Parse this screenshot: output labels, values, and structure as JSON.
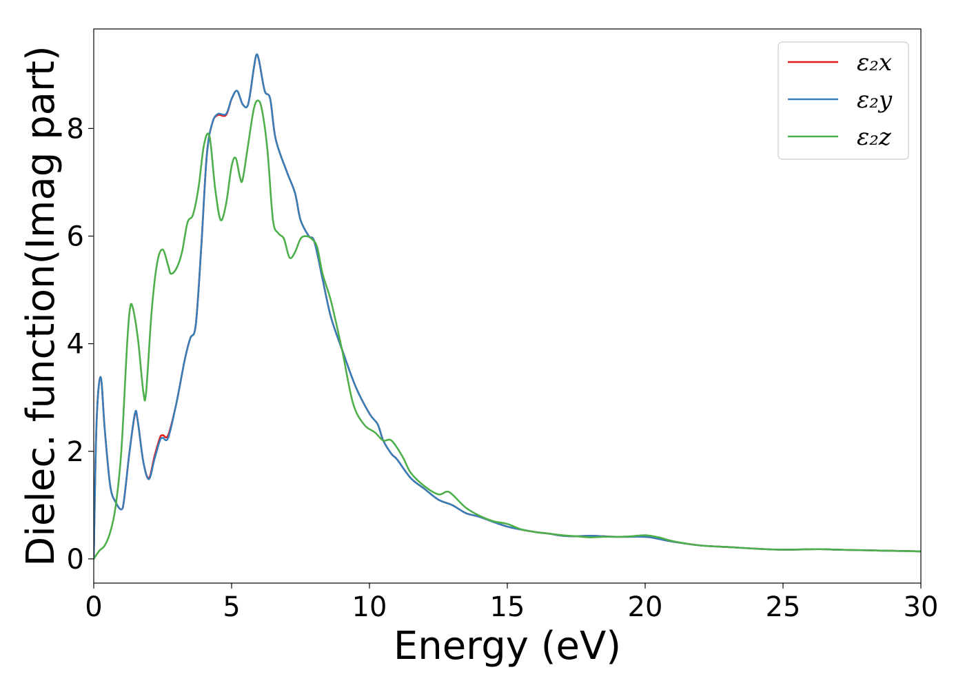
{
  "chart_data": {
    "type": "line",
    "title": "",
    "xlabel": "Energy (eV)",
    "ylabel": "Dielec. function(Imag part)",
    "xlim": [
      0,
      30
    ],
    "ylim": [
      -0.45,
      9.85
    ],
    "xticks": [
      0,
      5,
      10,
      15,
      20,
      25,
      30
    ],
    "yticks": [
      0,
      2,
      4,
      6,
      8
    ],
    "grid": false,
    "legend_position": "top-right",
    "series": [
      {
        "name": "ε₂x",
        "color": "#e41a1c",
        "x": [
          0,
          0.1,
          0.25,
          0.4,
          0.6,
          0.8,
          1.0,
          1.1,
          1.3,
          1.5,
          1.6,
          1.8,
          2.0,
          2.2,
          2.4,
          2.5,
          2.7,
          3.0,
          3.3,
          3.5,
          3.7,
          3.9,
          4.1,
          4.3,
          4.5,
          4.8,
          5.0,
          5.2,
          5.4,
          5.6,
          5.8,
          5.9,
          6.0,
          6.2,
          6.4,
          6.6,
          7.0,
          7.3,
          7.5,
          7.8,
          8.0,
          8.3,
          8.6,
          9.0,
          9.5,
          10.0,
          10.3,
          10.5,
          10.8,
          11.0,
          11.5,
          12.0,
          12.5,
          13.0,
          13.5,
          14.0,
          15.0,
          16.0,
          16.5,
          17.0,
          17.5,
          18.0,
          18.5,
          19.0,
          20.0,
          20.5,
          21.0,
          22.0,
          23.0,
          24.0,
          25.0,
          26.0,
          26.5,
          27.0,
          28.0,
          29.0,
          30.0
        ],
        "y": [
          0.0,
          2.5,
          3.38,
          2.4,
          1.35,
          1.05,
          0.92,
          1.1,
          2.0,
          2.7,
          2.55,
          1.8,
          1.5,
          1.9,
          2.25,
          2.3,
          2.3,
          2.9,
          3.7,
          4.1,
          4.35,
          5.8,
          7.5,
          8.1,
          8.25,
          8.25,
          8.55,
          8.7,
          8.45,
          8.45,
          9.1,
          9.37,
          9.25,
          8.7,
          8.55,
          7.8,
          7.2,
          6.8,
          6.3,
          6.0,
          5.9,
          5.2,
          4.5,
          3.9,
          3.2,
          2.7,
          2.5,
          2.2,
          1.95,
          1.85,
          1.5,
          1.3,
          1.1,
          1.0,
          0.85,
          0.78,
          0.6,
          0.5,
          0.47,
          0.43,
          0.42,
          0.43,
          0.42,
          0.41,
          0.41,
          0.37,
          0.32,
          0.25,
          0.22,
          0.19,
          0.17,
          0.18,
          0.18,
          0.17,
          0.16,
          0.15,
          0.14
        ]
      },
      {
        "name": "ε₂y",
        "color": "#377eb8",
        "x": [
          0,
          0.1,
          0.25,
          0.4,
          0.6,
          0.8,
          1.0,
          1.1,
          1.3,
          1.5,
          1.6,
          1.8,
          2.0,
          2.2,
          2.4,
          2.5,
          2.7,
          3.0,
          3.3,
          3.5,
          3.7,
          3.9,
          4.1,
          4.3,
          4.5,
          4.8,
          5.0,
          5.2,
          5.4,
          5.6,
          5.8,
          5.9,
          6.0,
          6.2,
          6.4,
          6.6,
          7.0,
          7.3,
          7.5,
          7.8,
          8.0,
          8.3,
          8.6,
          9.0,
          9.5,
          10.0,
          10.3,
          10.5,
          10.8,
          11.0,
          11.5,
          12.0,
          12.5,
          13.0,
          13.5,
          14.0,
          15.0,
          16.0,
          16.5,
          17.0,
          17.5,
          18.0,
          18.5,
          19.0,
          20.0,
          20.5,
          21.0,
          22.0,
          23.0,
          24.0,
          25.0,
          26.0,
          26.5,
          27.0,
          28.0,
          29.0,
          30.0
        ],
        "y": [
          0.0,
          2.5,
          3.38,
          2.4,
          1.35,
          1.05,
          0.92,
          1.1,
          2.0,
          2.72,
          2.55,
          1.8,
          1.48,
          1.85,
          2.2,
          2.25,
          2.25,
          2.9,
          3.7,
          4.1,
          4.35,
          5.8,
          7.5,
          8.1,
          8.27,
          8.27,
          8.55,
          8.7,
          8.45,
          8.45,
          9.1,
          9.37,
          9.25,
          8.7,
          8.55,
          7.8,
          7.2,
          6.8,
          6.3,
          6.0,
          5.9,
          5.2,
          4.5,
          3.9,
          3.2,
          2.7,
          2.5,
          2.2,
          1.95,
          1.85,
          1.5,
          1.3,
          1.1,
          1.0,
          0.85,
          0.78,
          0.6,
          0.5,
          0.47,
          0.43,
          0.42,
          0.43,
          0.42,
          0.41,
          0.41,
          0.37,
          0.32,
          0.25,
          0.22,
          0.19,
          0.17,
          0.18,
          0.18,
          0.17,
          0.16,
          0.15,
          0.14
        ]
      },
      {
        "name": "ε₂z",
        "color": "#4daf4a",
        "x": [
          0,
          0.2,
          0.4,
          0.6,
          0.8,
          1.0,
          1.2,
          1.3,
          1.4,
          1.6,
          1.8,
          1.9,
          2.1,
          2.3,
          2.5,
          2.7,
          2.8,
          3.0,
          3.2,
          3.4,
          3.6,
          3.8,
          4.0,
          4.2,
          4.4,
          4.6,
          4.8,
          5.0,
          5.15,
          5.3,
          5.4,
          5.6,
          5.8,
          5.95,
          6.1,
          6.3,
          6.5,
          6.7,
          6.9,
          7.1,
          7.3,
          7.5,
          7.7,
          7.9,
          8.1,
          8.3,
          8.6,
          9.0,
          9.4,
          9.8,
          10.2,
          10.5,
          10.8,
          11.2,
          11.5,
          12.0,
          12.5,
          12.8,
          13.0,
          13.5,
          14.0,
          14.5,
          15.0,
          15.5,
          16.0,
          16.5,
          17.0,
          17.5,
          18.0,
          18.5,
          19.0,
          19.5,
          20.0,
          20.5,
          21.0,
          22.0,
          23.0,
          24.0,
          25.0,
          26.0,
          26.5,
          27.0,
          28.0,
          29.0,
          30.0
        ],
        "y": [
          0.0,
          0.15,
          0.25,
          0.5,
          1.0,
          2.0,
          3.9,
          4.6,
          4.7,
          4.1,
          3.1,
          3.1,
          4.6,
          5.5,
          5.75,
          5.45,
          5.3,
          5.4,
          5.7,
          6.25,
          6.4,
          6.9,
          7.7,
          7.85,
          6.9,
          6.3,
          6.6,
          7.3,
          7.45,
          7.1,
          7.05,
          7.7,
          8.35,
          8.52,
          8.35,
          7.6,
          6.3,
          6.05,
          5.95,
          5.6,
          5.7,
          5.95,
          6.0,
          5.95,
          5.8,
          5.3,
          4.8,
          3.9,
          2.9,
          2.5,
          2.35,
          2.2,
          2.2,
          1.9,
          1.6,
          1.35,
          1.2,
          1.25,
          1.2,
          0.95,
          0.8,
          0.7,
          0.65,
          0.55,
          0.5,
          0.47,
          0.44,
          0.42,
          0.4,
          0.41,
          0.41,
          0.42,
          0.44,
          0.4,
          0.33,
          0.25,
          0.22,
          0.19,
          0.17,
          0.18,
          0.18,
          0.17,
          0.16,
          0.15,
          0.14
        ]
      }
    ]
  }
}
